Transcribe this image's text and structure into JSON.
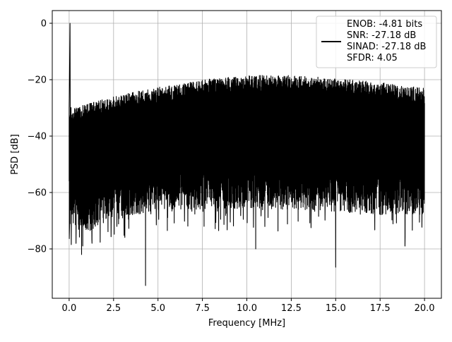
{
  "chart_data": {
    "type": "line",
    "xlabel": "Frequency [MHz]",
    "ylabel": "PSD [dB]",
    "xlim": [
      -0.95,
      20.95
    ],
    "ylim": [
      -97.5,
      4.5
    ],
    "xticks": [
      0.0,
      2.5,
      5.0,
      7.5,
      10.0,
      12.5,
      15.0,
      17.5,
      20.0
    ],
    "xtick_labels": [
      "0.0",
      "2.5",
      "5.0",
      "7.5",
      "10.0",
      "12.5",
      "15.0",
      "17.5",
      "20.0"
    ],
    "yticks": [
      0,
      -20,
      -40,
      -60,
      -80
    ],
    "ytick_labels": [
      "0",
      "−20",
      "−40",
      "−60",
      "−80"
    ],
    "grid": true,
    "legend_position": "top-right",
    "series": [
      {
        "name": "ENOB: -4.81 bits\nSNR: -27.18 dB\nSINAD: -27.18 dB\nSFDR: 4.05",
        "legend_lines": [
          "ENOB: -4.81 bits",
          "SNR: -27.18 dB",
          "SINAD: -27.18 dB",
          "SFDR: 4.05"
        ],
        "color": "#000000",
        "peak": {
          "x": 0.05,
          "y": 0
        },
        "upper_envelope": [
          {
            "x": 0.0,
            "y": -30
          },
          {
            "x": 1.0,
            "y": -28.5
          },
          {
            "x": 2.5,
            "y": -26
          },
          {
            "x": 5.0,
            "y": -22.5
          },
          {
            "x": 7.5,
            "y": -20
          },
          {
            "x": 10.0,
            "y": -18.5
          },
          {
            "x": 12.5,
            "y": -18.5
          },
          {
            "x": 15.0,
            "y": -19.5
          },
          {
            "x": 17.5,
            "y": -21
          },
          {
            "x": 20.0,
            "y": -23
          }
        ],
        "lower_envelope": [
          {
            "x": 0.0,
            "y": -72
          },
          {
            "x": 1.0,
            "y": -74
          },
          {
            "x": 2.5,
            "y": -70
          },
          {
            "x": 5.0,
            "y": -66
          },
          {
            "x": 7.5,
            "y": -66
          },
          {
            "x": 10.0,
            "y": -66
          },
          {
            "x": 12.5,
            "y": -66
          },
          {
            "x": 15.0,
            "y": -67
          },
          {
            "x": 17.5,
            "y": -68
          },
          {
            "x": 20.0,
            "y": -68
          }
        ],
        "notable_dips": [
          {
            "x": 0.7,
            "y": -82
          },
          {
            "x": 4.3,
            "y": -93
          },
          {
            "x": 10.5,
            "y": -80
          },
          {
            "x": 15.0,
            "y": -86.5
          },
          {
            "x": 18.9,
            "y": -79
          }
        ]
      }
    ]
  }
}
